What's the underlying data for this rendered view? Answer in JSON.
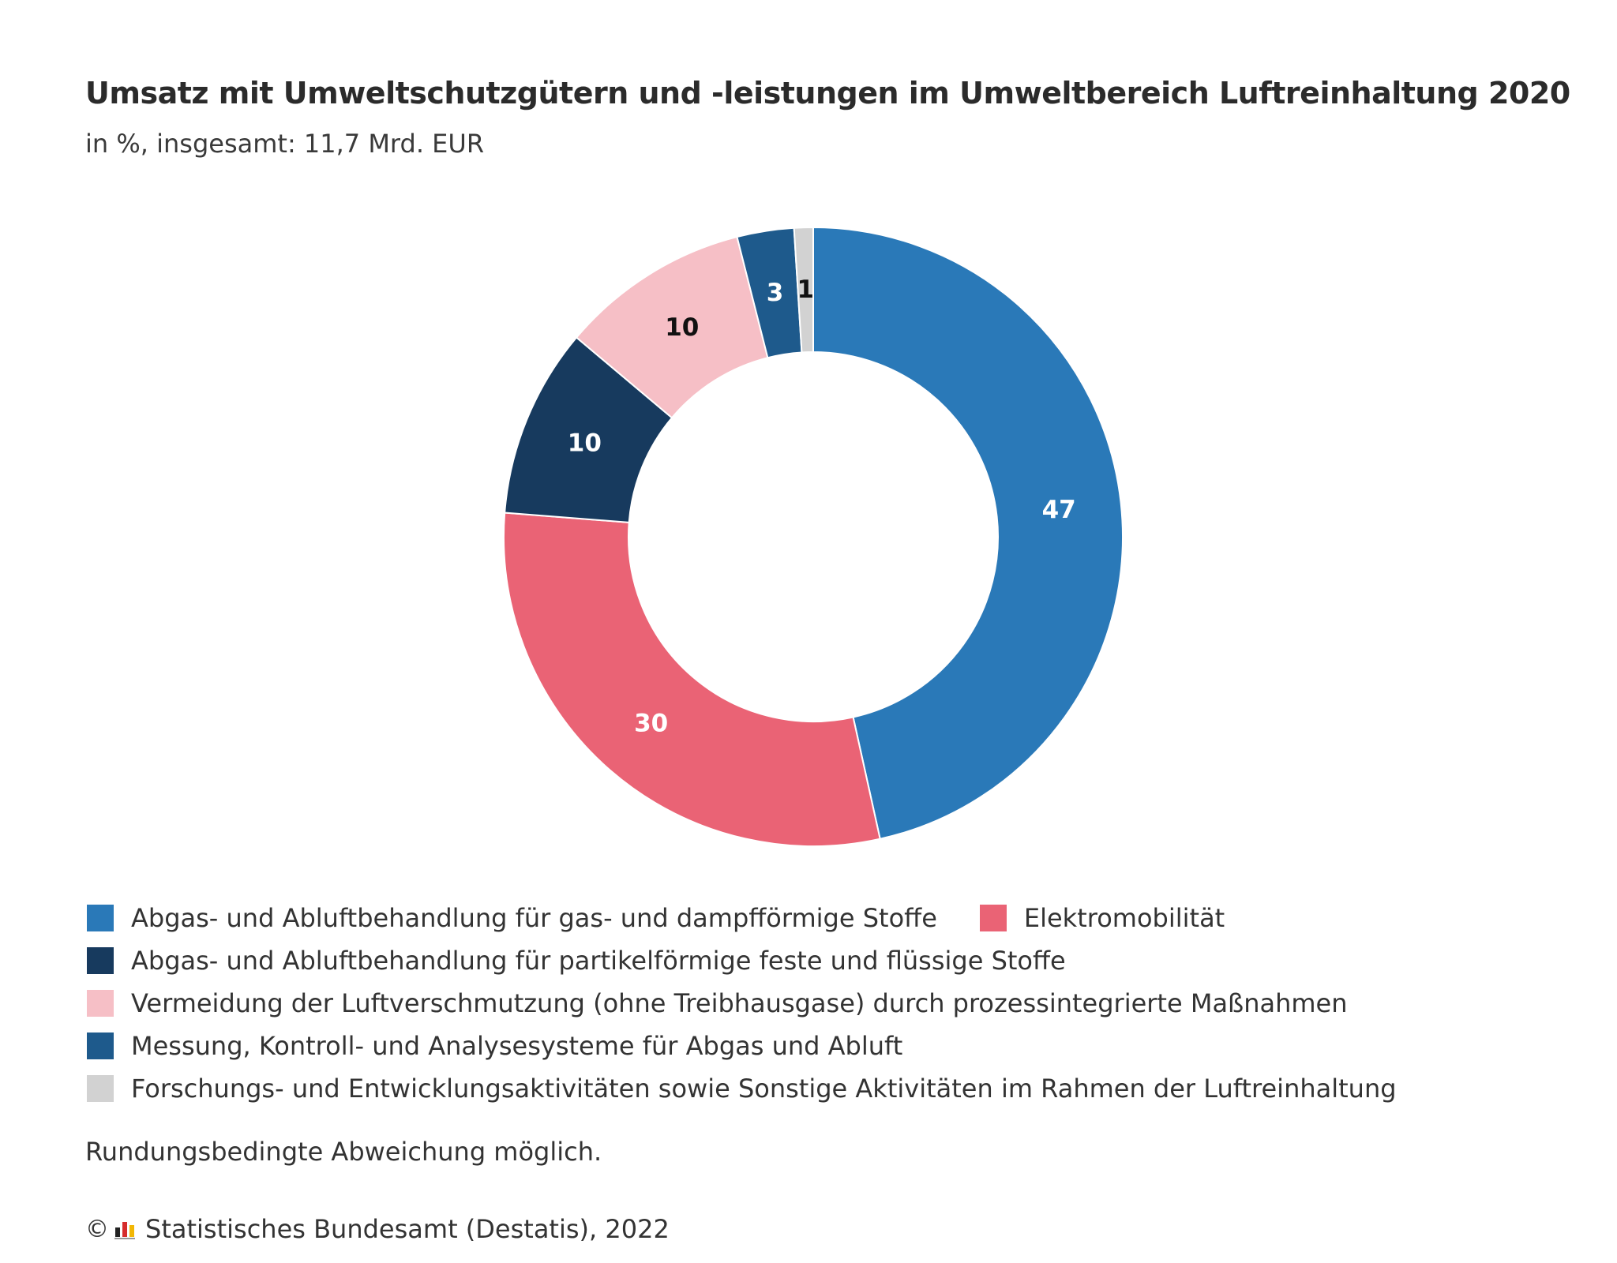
{
  "chart_data": {
    "type": "pie",
    "style": "donut",
    "title": "Umsatz mit Umweltschutzgütern und -leistungen im Umweltbereich Luftreinhaltung 2020",
    "subtitle": "in %, insgesamt: 11,7 Mrd. EUR",
    "unit": "%",
    "slices": [
      {
        "label": "Abgas- und Abluftbehandlung für gas- und dampfförmige Stoffe",
        "value": 47,
        "color": "#2a79b8",
        "label_color": "#ffffff"
      },
      {
        "label": "Elektromobilität",
        "value": 30,
        "color": "#ea6375",
        "label_color": "#ffffff"
      },
      {
        "label": "Abgas- und Abluftbehandlung für partikelförmige feste und flüssige Stoffe",
        "value": 10,
        "color": "#173a5e",
        "label_color": "#ffffff"
      },
      {
        "label": "Vermeidung der Luftverschmutzung (ohne Treibhausgase) durch prozessintegrierte Maßnahmen",
        "value": 10,
        "color": "#f6bfc6",
        "label_color": "#111111"
      },
      {
        "label": "Messung, Kontroll- und Analysesysteme für Abgas und Abluft",
        "value": 3,
        "color": "#1e5a8c",
        "label_color": "#ffffff"
      },
      {
        "label": "Forschungs- und Entwicklungsaktivitäten sowie Sonstige Aktivitäten im Rahmen der Luftreinhaltung",
        "value": 1,
        "color": "#d2d2d2",
        "label_color": "#111111"
      }
    ],
    "legend_position": "bottom"
  },
  "footnote": "Rundungsbedingte Abweichung möglich.",
  "source": {
    "copyright_symbol": "©",
    "icon": "destatis-logo-icon",
    "text": "Statistisches Bundesamt (Destatis), 2022"
  }
}
